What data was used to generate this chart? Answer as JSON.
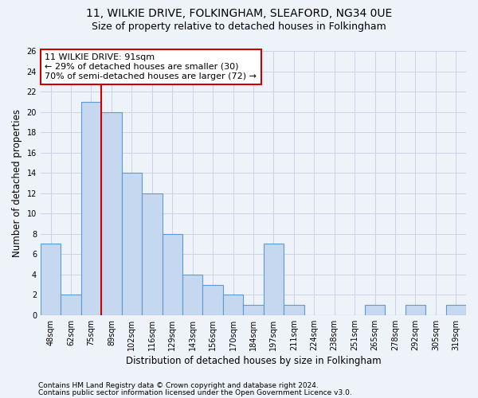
{
  "title1": "11, WILKIE DRIVE, FOLKINGHAM, SLEAFORD, NG34 0UE",
  "title2": "Size of property relative to detached houses in Folkingham",
  "xlabel": "Distribution of detached houses by size in Folkingham",
  "ylabel": "Number of detached properties",
  "categories": [
    "48sqm",
    "62sqm",
    "75sqm",
    "89sqm",
    "102sqm",
    "116sqm",
    "129sqm",
    "143sqm",
    "156sqm",
    "170sqm",
    "184sqm",
    "197sqm",
    "211sqm",
    "224sqm",
    "238sqm",
    "251sqm",
    "265sqm",
    "278sqm",
    "292sqm",
    "305sqm",
    "319sqm"
  ],
  "values": [
    7,
    2,
    21,
    20,
    14,
    12,
    8,
    4,
    3,
    2,
    1,
    7,
    1,
    0,
    0,
    0,
    1,
    0,
    1,
    0,
    1
  ],
  "bar_color": "#c5d8f0",
  "bar_edge_color": "#5b9bd5",
  "grid_color": "#c8d4e8",
  "annotation_box_text": "11 WILKIE DRIVE: 91sqm\n← 29% of detached houses are smaller (30)\n70% of semi-detached houses are larger (72) →",
  "annotation_box_color": "#ffffff",
  "annotation_box_edge_color": "#cc0000",
  "vline_color": "#cc0000",
  "vline_x": 3.0,
  "ylim": [
    0,
    26
  ],
  "yticks": [
    0,
    2,
    4,
    6,
    8,
    10,
    12,
    14,
    16,
    18,
    20,
    22,
    24,
    26
  ],
  "footnote1": "Contains HM Land Registry data © Crown copyright and database right 2024.",
  "footnote2": "Contains public sector information licensed under the Open Government Licence v3.0.",
  "background_color": "#eef2f9",
  "title1_fontsize": 10,
  "title2_fontsize": 9,
  "xlabel_fontsize": 8.5,
  "ylabel_fontsize": 8.5,
  "tick_fontsize": 7,
  "annotation_fontsize": 8,
  "footnote_fontsize": 6.5
}
